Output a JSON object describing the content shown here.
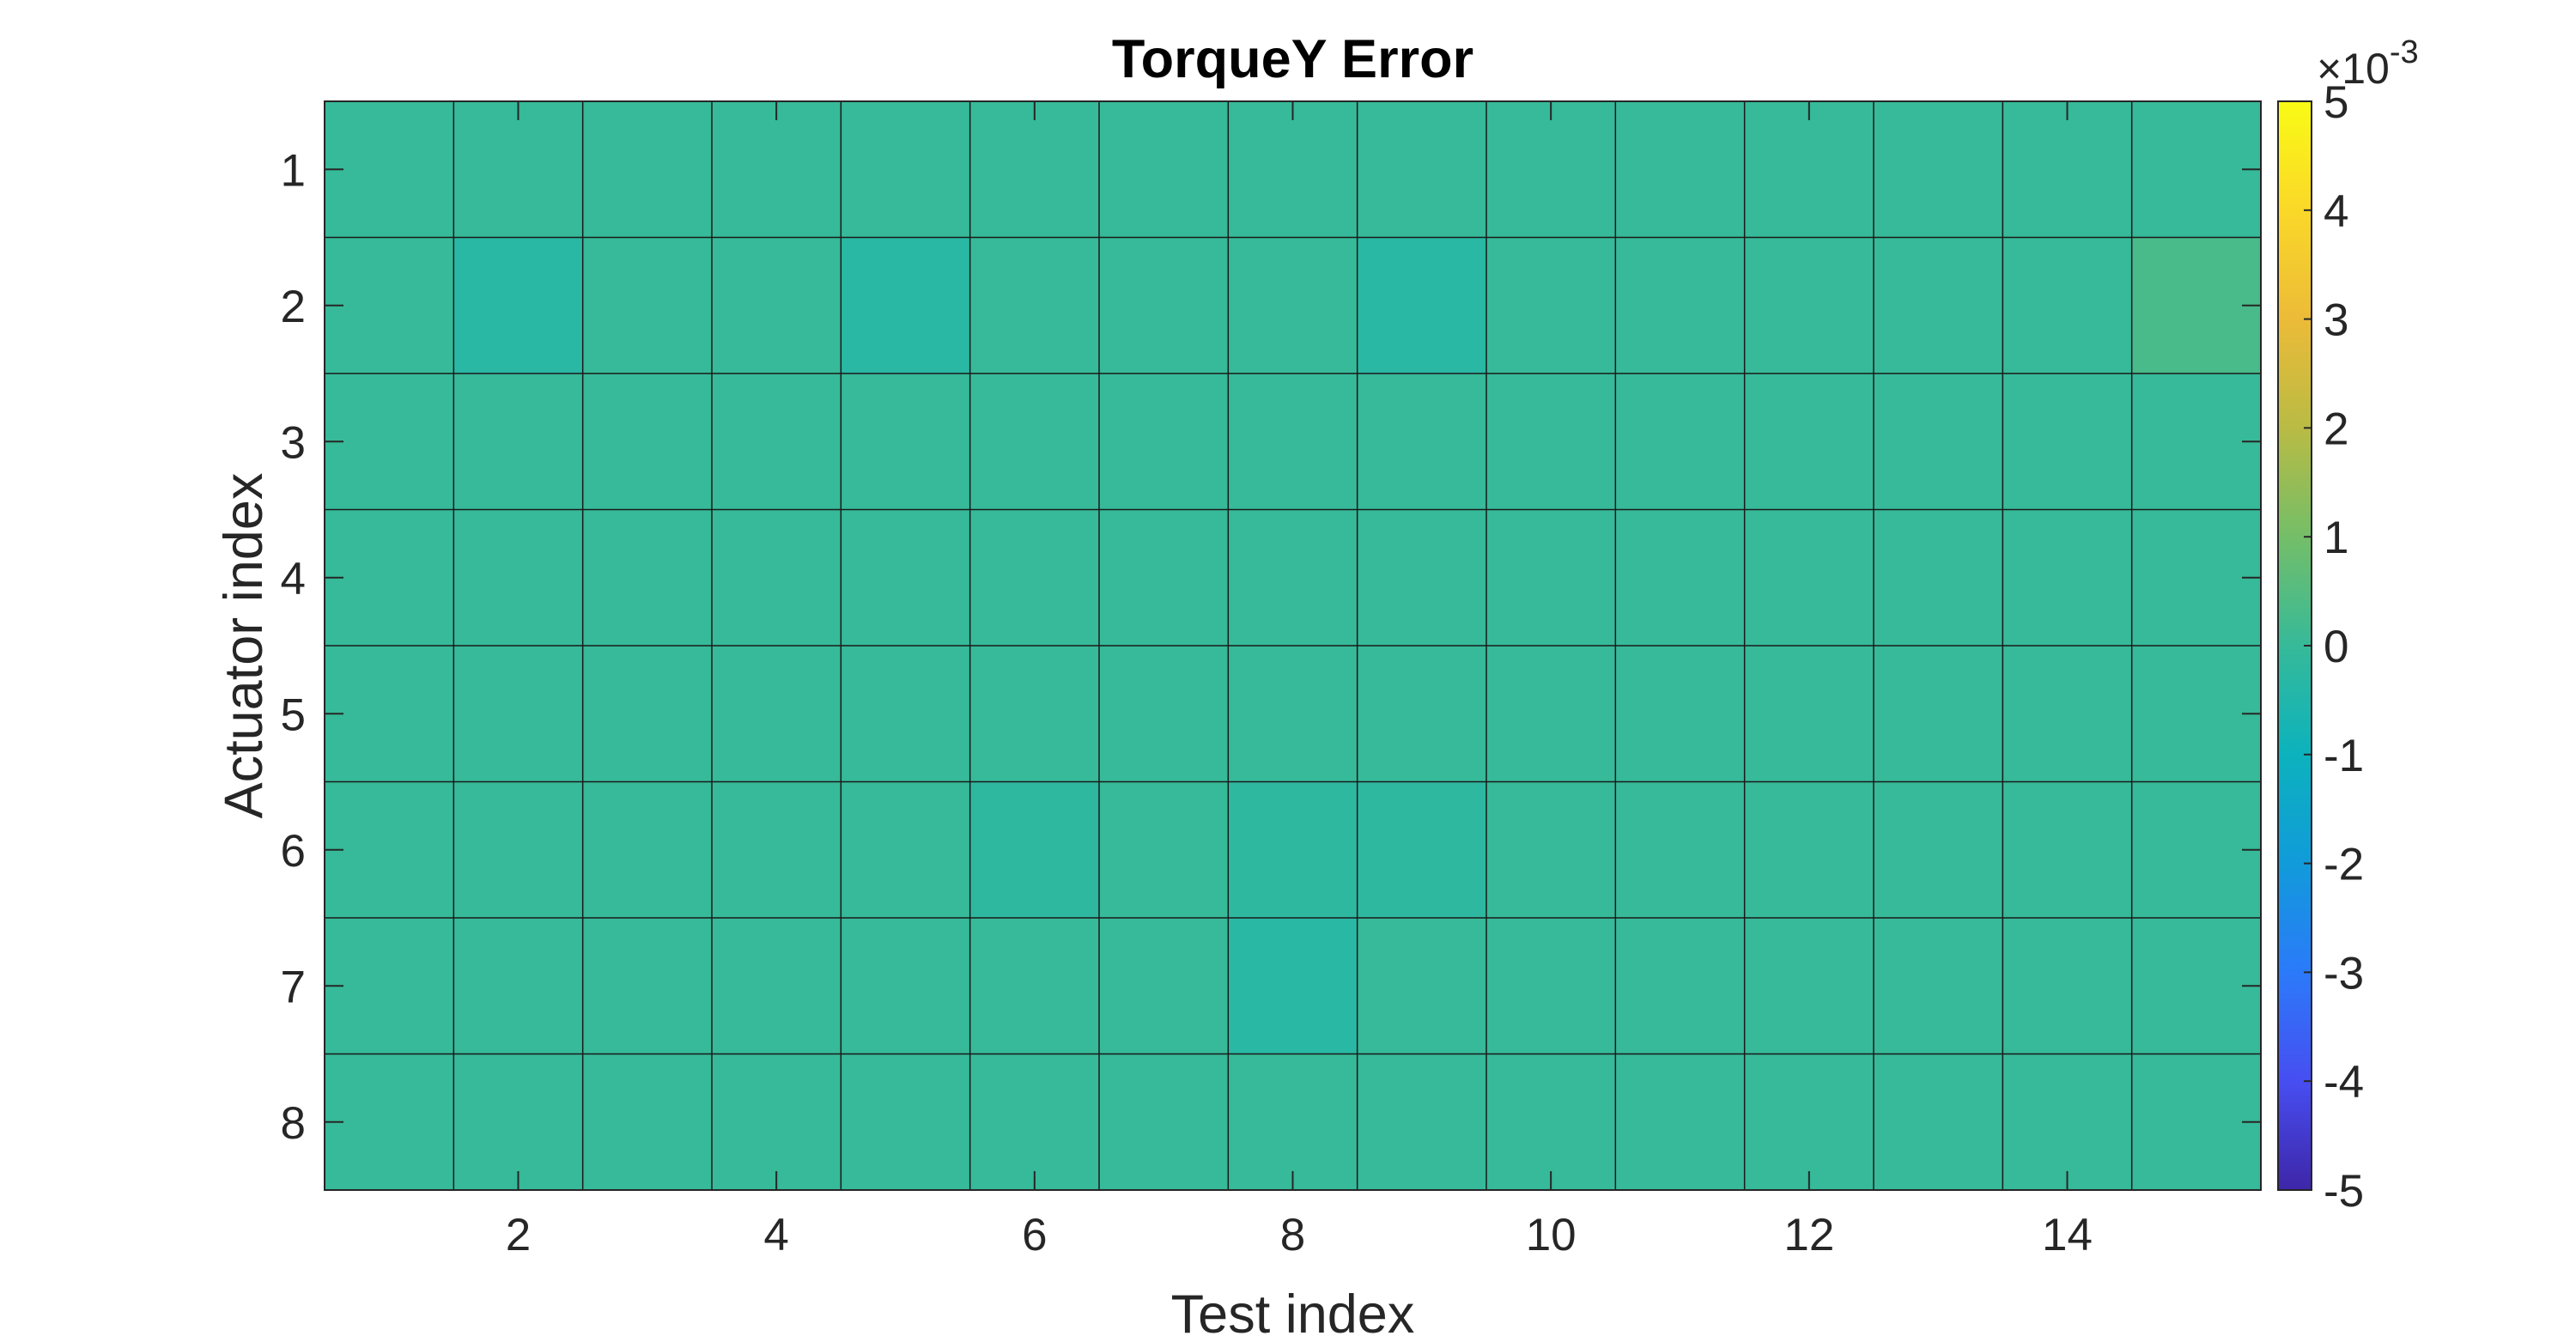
{
  "chart_data": {
    "type": "heatmap",
    "title": "TorqueY Error",
    "xlabel": "Test index",
    "ylabel": "Actuator index",
    "x_range": [
      1,
      15
    ],
    "y_range": [
      1,
      8
    ],
    "x_ticks": [
      2,
      4,
      6,
      8,
      10,
      12,
      14
    ],
    "y_ticks": [
      1,
      2,
      3,
      4,
      5,
      6,
      7,
      8
    ],
    "x_tick_labels": [
      "2",
      "4",
      "6",
      "8",
      "10",
      "12",
      "14"
    ],
    "y_tick_labels": [
      "1",
      "2",
      "3",
      "4",
      "5",
      "6",
      "7",
      "8"
    ],
    "colorbar": {
      "colormap": "parula",
      "clim": [
        -5,
        5
      ],
      "ticks": [
        5,
        4,
        3,
        2,
        1,
        0,
        -1,
        -2,
        -3,
        -4,
        -5
      ],
      "tick_labels": [
        "5",
        "4",
        "3",
        "2",
        "1",
        "0",
        "-1",
        "-2",
        "-3",
        "-4",
        "-5"
      ],
      "exponent_prefix": "×10",
      "exponent": "-3"
    },
    "values_scale": "×10^-3",
    "values": [
      [
        0.0,
        0.0,
        0.0,
        0.0,
        0.0,
        0.0,
        0.0,
        0.0,
        0.0,
        0.0,
        0.0,
        0.0,
        0.0,
        0.0,
        0.0
      ],
      [
        0.0,
        -0.3,
        0.0,
        0.0,
        -0.3,
        0.0,
        0.0,
        0.0,
        -0.3,
        0.0,
        0.0,
        0.0,
        0.0,
        0.0,
        0.3
      ],
      [
        0.0,
        0.0,
        0.0,
        0.0,
        0.0,
        0.0,
        0.0,
        0.0,
        0.0,
        0.0,
        0.0,
        0.0,
        0.0,
        0.0,
        0.0
      ],
      [
        0.0,
        0.0,
        0.0,
        0.0,
        0.0,
        0.0,
        0.0,
        0.0,
        0.0,
        0.0,
        0.0,
        0.0,
        0.0,
        0.0,
        0.0
      ],
      [
        0.0,
        0.0,
        0.0,
        0.0,
        0.0,
        0.0,
        0.0,
        0.0,
        0.0,
        0.0,
        0.0,
        0.0,
        0.0,
        0.0,
        0.0
      ],
      [
        0.0,
        0.0,
        0.0,
        0.0,
        0.0,
        -0.2,
        0.0,
        -0.2,
        -0.2,
        0.0,
        0.0,
        0.0,
        0.0,
        0.0,
        0.0
      ],
      [
        0.0,
        0.0,
        0.0,
        0.0,
        0.0,
        0.0,
        0.0,
        -0.3,
        0.0,
        0.0,
        0.0,
        0.0,
        0.0,
        0.0,
        0.0
      ],
      [
        0.0,
        0.0,
        0.0,
        0.0,
        0.0,
        0.0,
        0.0,
        0.0,
        0.0,
        0.0,
        0.0,
        0.0,
        0.0,
        0.0,
        0.0
      ]
    ],
    "grid": true,
    "legend": "none"
  }
}
